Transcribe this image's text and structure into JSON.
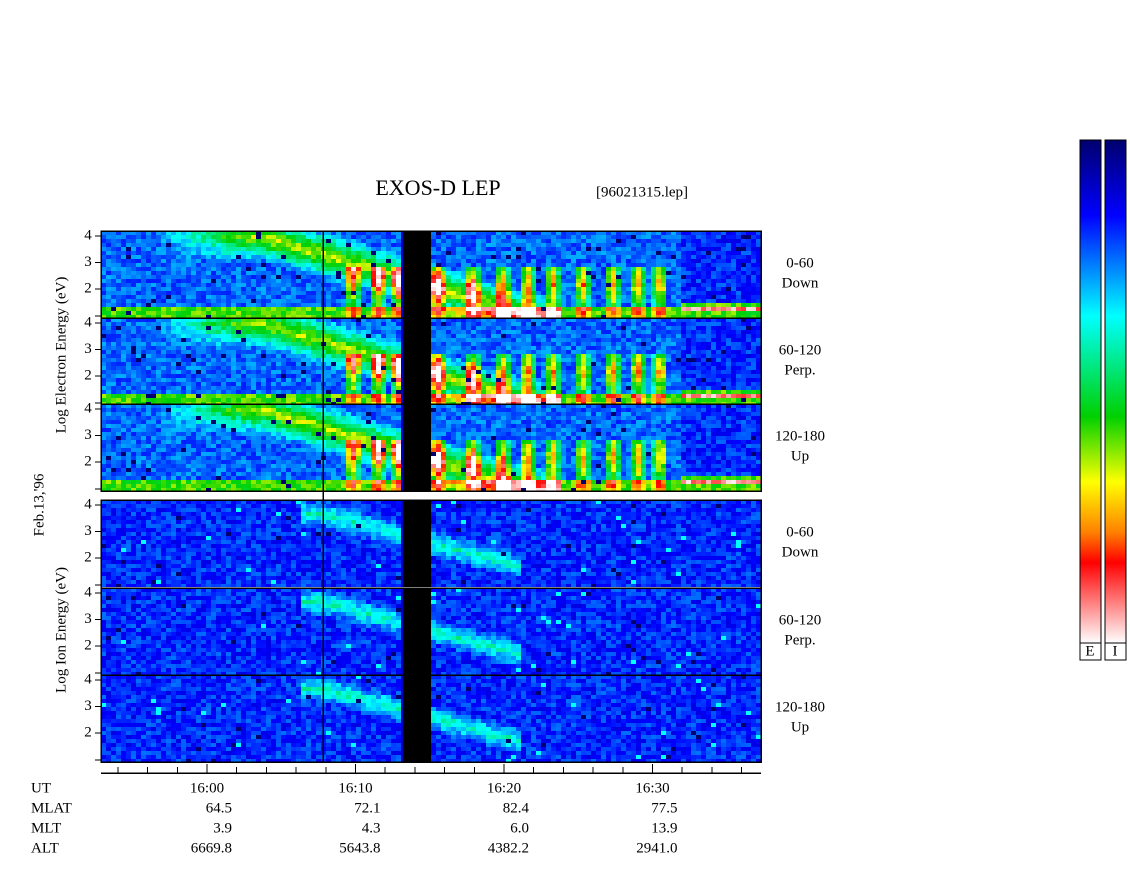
{
  "title": "EXOS-D LEP",
  "file": "[96021315.lep]",
  "date": "Feb.13,'96",
  "electron_axis_label": "Log Electron Energy (eV)",
  "ion_axis_label": "Log Ion Energy (eV)",
  "energy_ticks": [
    "2",
    "3",
    "4"
  ],
  "electron_panels": [
    {
      "angle": "0-60",
      "direction": "Down"
    },
    {
      "angle": "60-120",
      "direction": "Perp."
    },
    {
      "angle": "120-180",
      "direction": "Up"
    }
  ],
  "ion_panels": [
    {
      "angle": "0-60",
      "direction": "Down"
    },
    {
      "angle": "60-120",
      "direction": "Perp."
    },
    {
      "angle": "120-180",
      "direction": "Up"
    }
  ],
  "orbit_table": {
    "rows": [
      [
        "UT",
        "16:00",
        "16:10",
        "16:20",
        "16:30"
      ],
      [
        "MLAT",
        "64.5",
        "72.1",
        "82.4",
        "77.5"
      ],
      [
        "MLT",
        "3.9",
        "4.3",
        "6.0",
        "13.9"
      ],
      [
        "ALT",
        "6669.8",
        "5643.8",
        "4382.2",
        "2941.0"
      ]
    ]
  },
  "colorbar_labels": [
    "E",
    "I"
  ]
}
